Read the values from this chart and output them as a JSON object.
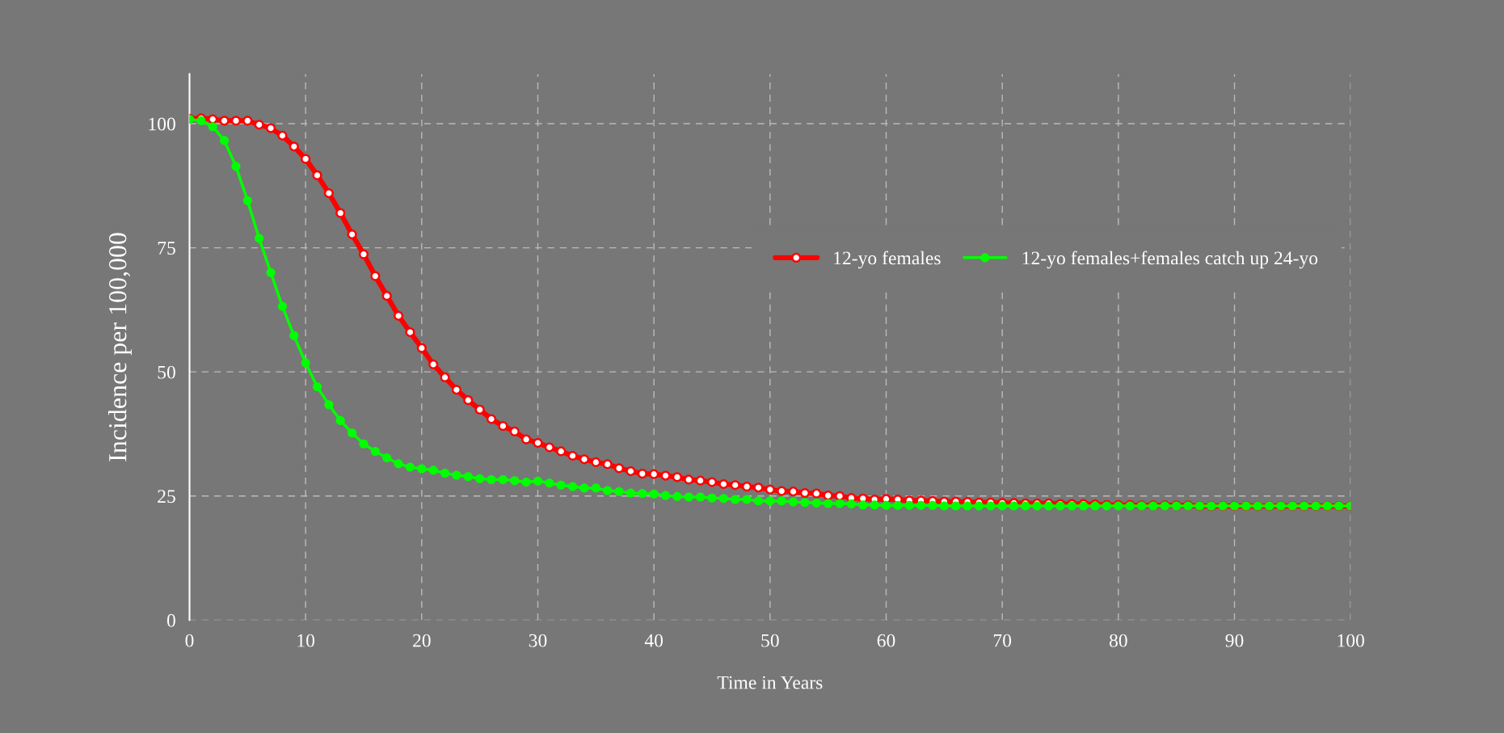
{
  "chart_data": {
    "type": "line",
    "xlabel": "Time in Years",
    "ylabel": "Incidence per 100,000",
    "x": [
      0,
      1,
      2,
      3,
      4,
      5,
      6,
      7,
      8,
      9,
      10,
      11,
      12,
      13,
      14,
      15,
      16,
      17,
      18,
      19,
      20,
      21,
      22,
      23,
      24,
      25,
      26,
      27,
      28,
      29,
      30,
      31,
      32,
      33,
      34,
      35,
      36,
      37,
      38,
      39,
      40,
      41,
      42,
      43,
      44,
      45,
      46,
      47,
      48,
      49,
      50,
      51,
      52,
      53,
      54,
      55,
      56,
      57,
      58,
      59,
      60,
      61,
      62,
      63,
      64,
      65,
      66,
      67,
      68,
      69,
      70,
      71,
      72,
      73,
      74,
      75,
      76,
      77,
      78,
      79,
      80,
      81,
      82,
      83,
      84,
      85,
      86,
      87,
      88,
      89,
      90,
      91,
      92,
      93,
      94,
      95,
      96,
      97,
      98,
      99,
      100
    ],
    "series": [
      {
        "name": "12-yo females",
        "color": "#ff0000",
        "values": [
          101.0,
          101.1,
          100.9,
          100.6,
          100.6,
          100.6,
          99.8,
          99.1,
          97.6,
          95.4,
          92.9,
          89.6,
          86.0,
          82.0,
          77.7,
          73.7,
          69.3,
          65.3,
          61.3,
          58.0,
          54.8,
          51.5,
          48.9,
          46.4,
          44.3,
          42.4,
          40.5,
          39.1,
          38.0,
          36.4,
          35.7,
          34.8,
          34.0,
          33.1,
          32.4,
          31.8,
          31.4,
          30.6,
          30.0,
          29.5,
          29.4,
          29.1,
          28.8,
          28.3,
          28.1,
          27.8,
          27.4,
          27.2,
          26.9,
          26.7,
          26.3,
          26.0,
          25.9,
          25.6,
          25.5,
          25.1,
          25.0,
          24.6,
          24.5,
          24.3,
          24.4,
          24.3,
          24.1,
          24.1,
          24.0,
          23.9,
          23.9,
          23.8,
          23.7,
          23.7,
          23.6,
          23.6,
          23.5,
          23.5,
          23.5,
          23.4,
          23.4,
          23.4,
          23.3,
          23.2,
          23.2,
          23.2,
          23.1,
          23.1,
          23.1,
          23.1,
          23.1,
          23.0,
          23.0,
          23.0,
          23.0,
          23.0,
          23.0,
          23.0,
          23.0,
          23.0,
          23.0,
          23.0,
          23.0,
          23.0,
          23.0
        ]
      },
      {
        "name": "12-yo females+females catch up 24-yo",
        "color": "#00ff00",
        "values": [
          100.9,
          100.6,
          99.4,
          96.6,
          91.4,
          84.5,
          76.9,
          70.0,
          63.2,
          57.3,
          51.8,
          47.0,
          43.4,
          40.2,
          37.7,
          35.5,
          34.0,
          32.7,
          31.5,
          30.8,
          30.5,
          30.2,
          29.6,
          29.2,
          28.9,
          28.5,
          28.3,
          28.3,
          28.1,
          27.8,
          28.0,
          27.6,
          27.2,
          26.9,
          26.6,
          26.6,
          26.1,
          25.9,
          25.6,
          25.5,
          25.4,
          25.1,
          24.9,
          24.8,
          24.8,
          24.6,
          24.5,
          24.3,
          24.3,
          24.0,
          24.0,
          24.0,
          23.8,
          23.7,
          23.6,
          23.5,
          23.5,
          23.4,
          23.2,
          23.2,
          23.1,
          23.1,
          23.1,
          23.1,
          23.1,
          23.0,
          23.0,
          23.0,
          23.0,
          23.0,
          23.0,
          23.0,
          23.0,
          23.0,
          23.0,
          23.0,
          23.0,
          23.0,
          23.0,
          23.0,
          23.0,
          23.0,
          23.0,
          23.0,
          23.0,
          23.0,
          23.0,
          23.0,
          23.0,
          23.0,
          23.0,
          23.0,
          23.0,
          23.0,
          23.0,
          23.0,
          23.0,
          23.0,
          23.0,
          23.0,
          23.0
        ]
      }
    ],
    "xlim": [
      0,
      100
    ],
    "xticks": [
      0,
      10,
      20,
      30,
      40,
      50,
      60,
      70,
      80,
      90,
      100
    ],
    "ylim": [
      0,
      110
    ],
    "yticks": [
      0,
      25,
      50,
      75,
      100
    ],
    "grid": true,
    "legend": "right",
    "marker": "circle",
    "line_style": "solid"
  }
}
